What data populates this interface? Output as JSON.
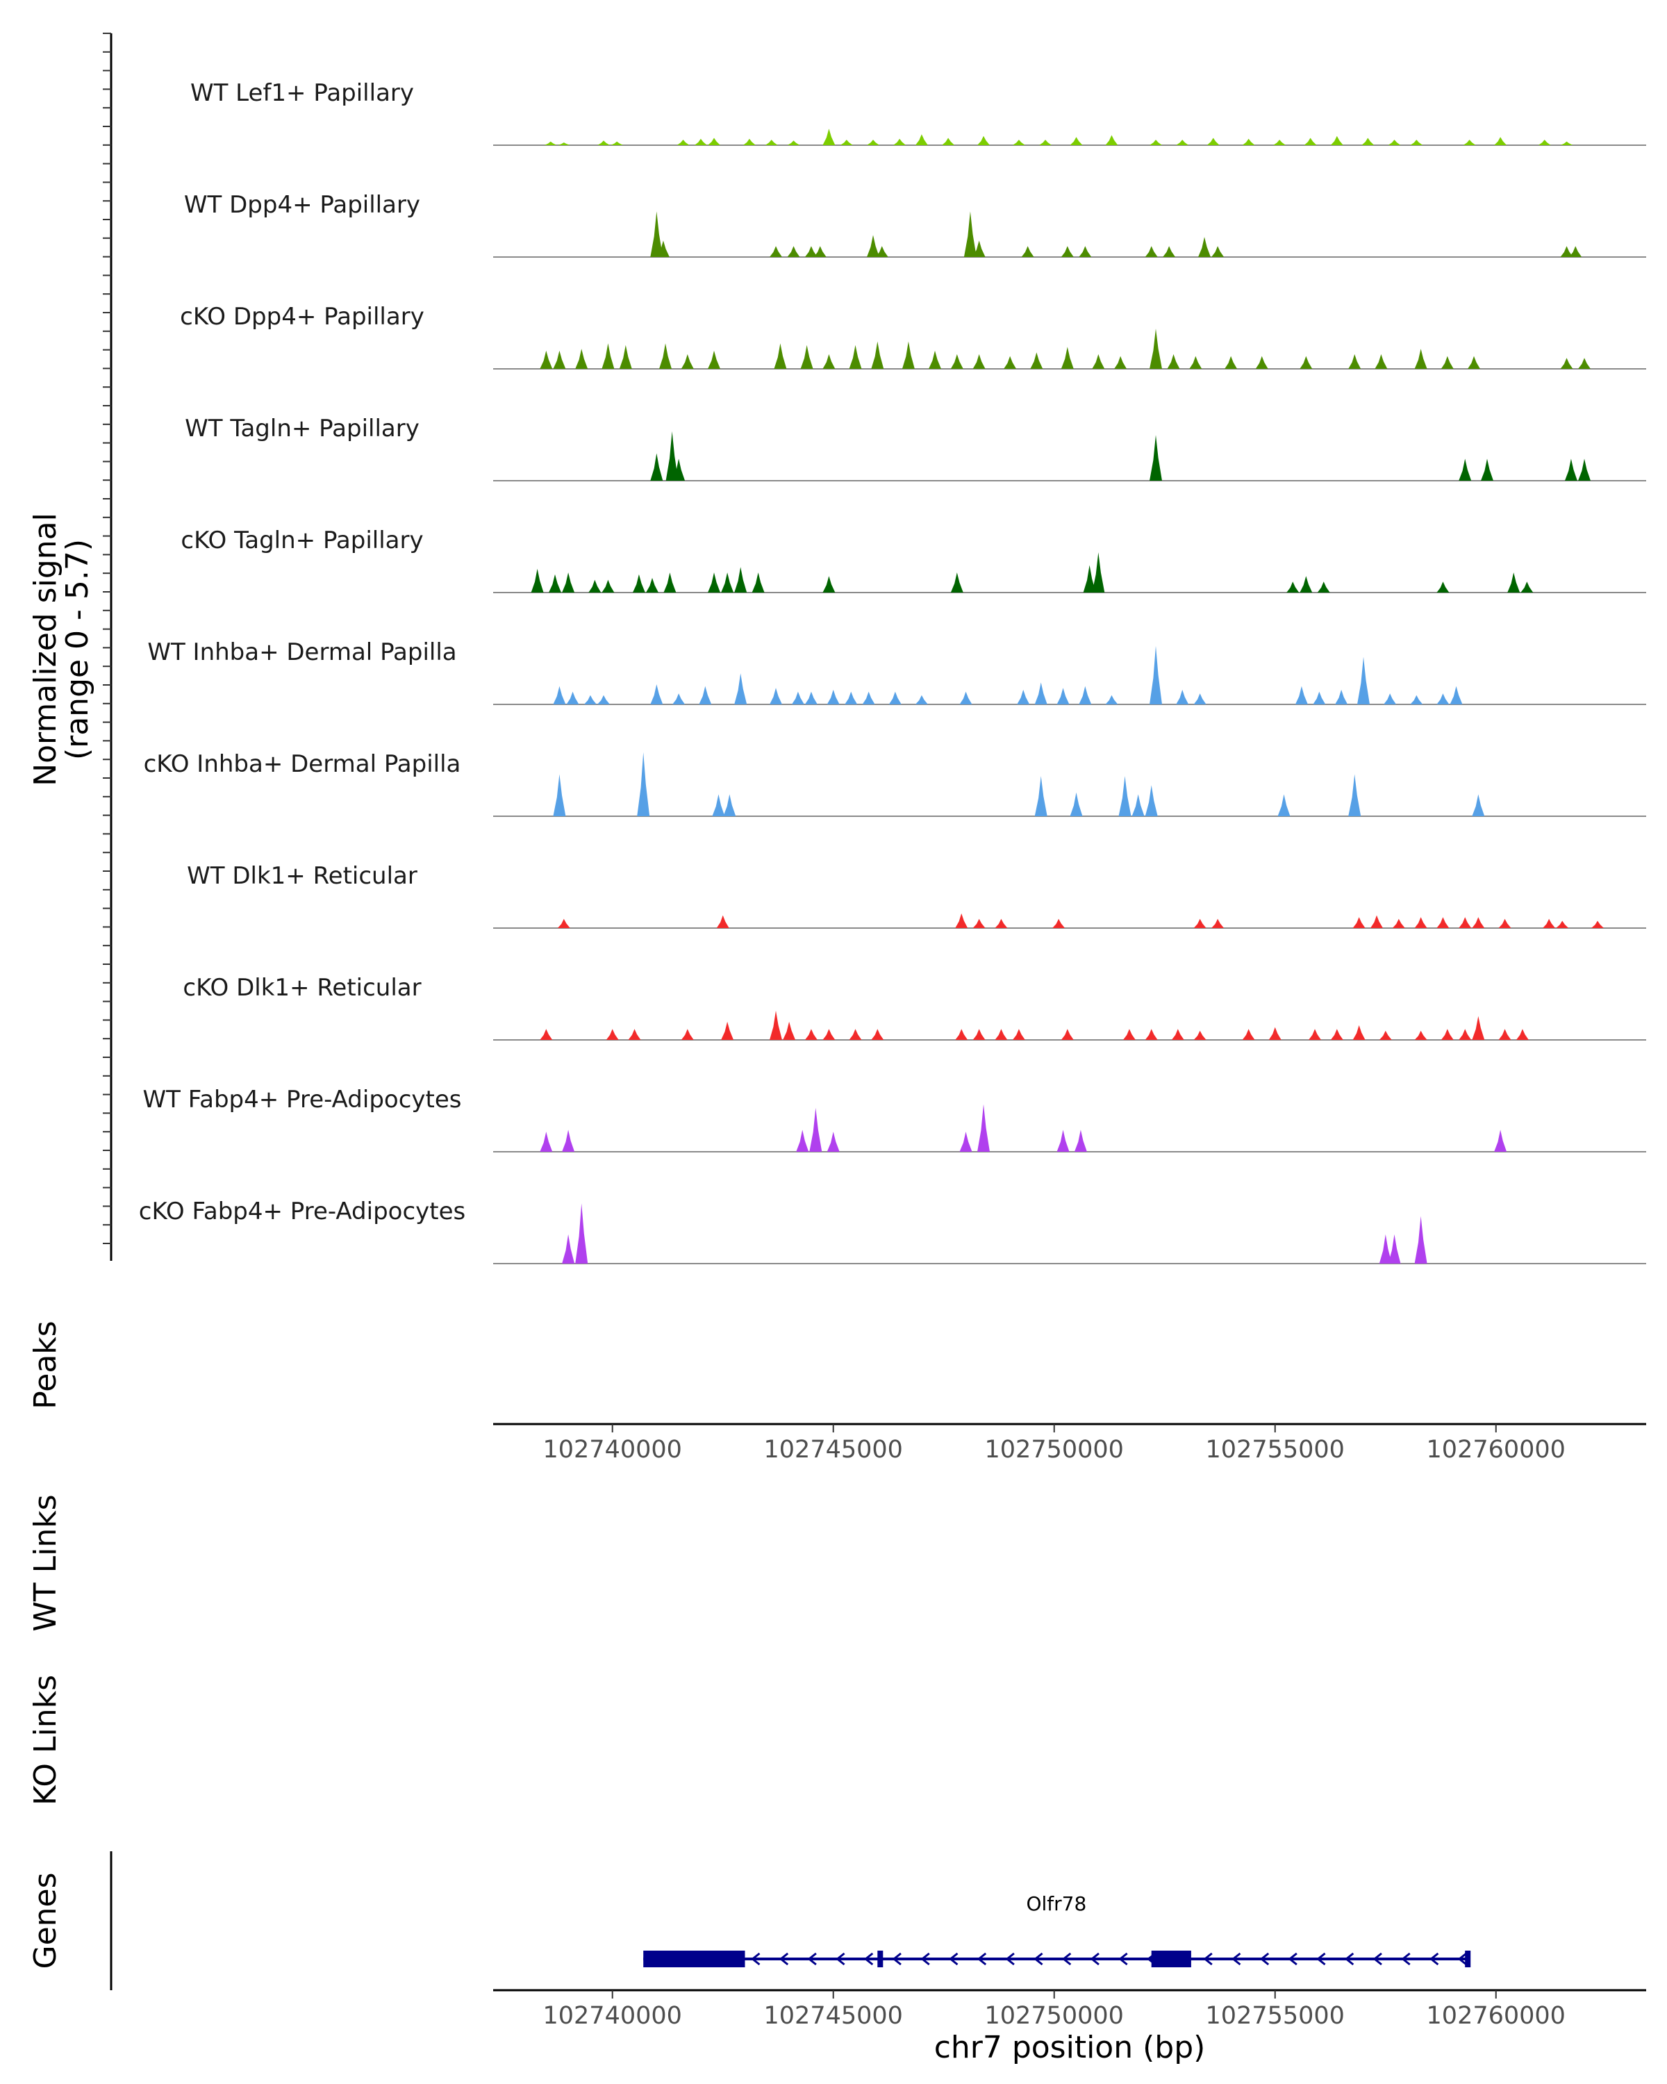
{
  "chart_data": {
    "type": "coverage",
    "signal_axis_label": [
      "Normalized signal",
      "(range 0 - 5.7)"
    ],
    "signal_range": [
      0,
      5.7
    ],
    "x_range_bp": [
      102737300,
      102763400
    ],
    "x_ticks": [
      102740000,
      102745000,
      102750000,
      102755000,
      102760000
    ],
    "x_tick_labels": [
      "102740000",
      "102745000",
      "102750000",
      "102755000",
      "102760000"
    ],
    "xlabel": "chr7 position (bp)",
    "tracks": [
      {
        "name": "WT Lef1+ Papillary",
        "color": "#7ccd00",
        "peaks": [
          [
            102738600,
            0.2
          ],
          [
            102738900,
            0.15
          ],
          [
            102739800,
            0.25
          ],
          [
            102740100,
            0.2
          ],
          [
            102741600,
            0.3
          ],
          [
            102742000,
            0.35
          ],
          [
            102742300,
            0.4
          ],
          [
            102743100,
            0.35
          ],
          [
            102743600,
            0.3
          ],
          [
            102744100,
            0.25
          ],
          [
            102744900,
            0.9
          ],
          [
            102745300,
            0.3
          ],
          [
            102745900,
            0.3
          ],
          [
            102746500,
            0.35
          ],
          [
            102747000,
            0.6
          ],
          [
            102747600,
            0.4
          ],
          [
            102748400,
            0.5
          ],
          [
            102749200,
            0.3
          ],
          [
            102749800,
            0.3
          ],
          [
            102750500,
            0.45
          ],
          [
            102751300,
            0.55
          ],
          [
            102752300,
            0.3
          ],
          [
            102752900,
            0.3
          ],
          [
            102753600,
            0.4
          ],
          [
            102754400,
            0.35
          ],
          [
            102755100,
            0.3
          ],
          [
            102755800,
            0.4
          ],
          [
            102756400,
            0.5
          ],
          [
            102757100,
            0.4
          ],
          [
            102757700,
            0.3
          ],
          [
            102758200,
            0.3
          ],
          [
            102759400,
            0.3
          ],
          [
            102760100,
            0.45
          ],
          [
            102761100,
            0.3
          ],
          [
            102761600,
            0.2
          ]
        ]
      },
      {
        "name": "WT Dpp4+ Papillary",
        "color": "#4c8c00",
        "peaks": [
          [
            102741000,
            2.5
          ],
          [
            102741150,
            0.9
          ],
          [
            102743700,
            0.6
          ],
          [
            102744100,
            0.6
          ],
          [
            102744500,
            0.6
          ],
          [
            102744700,
            0.6
          ],
          [
            102745900,
            1.2
          ],
          [
            102746100,
            0.6
          ],
          [
            102748100,
            2.5
          ],
          [
            102748300,
            0.9
          ],
          [
            102749400,
            0.6
          ],
          [
            102750300,
            0.6
          ],
          [
            102750700,
            0.6
          ],
          [
            102752200,
            0.6
          ],
          [
            102752600,
            0.6
          ],
          [
            102753400,
            1.1
          ],
          [
            102753700,
            0.6
          ],
          [
            102761600,
            0.6
          ],
          [
            102761800,
            0.6
          ]
        ]
      },
      {
        "name": "cKO Dpp4+ Papillary",
        "color": "#4c8c00",
        "peaks": [
          [
            102738500,
            1.0
          ],
          [
            102738800,
            1.0
          ],
          [
            102739300,
            1.1
          ],
          [
            102739900,
            1.4
          ],
          [
            102740300,
            1.3
          ],
          [
            102741200,
            1.4
          ],
          [
            102741700,
            0.8
          ],
          [
            102742300,
            1.0
          ],
          [
            102743800,
            1.4
          ],
          [
            102744400,
            1.3
          ],
          [
            102744900,
            0.8
          ],
          [
            102745500,
            1.3
          ],
          [
            102746000,
            1.5
          ],
          [
            102746700,
            1.5
          ],
          [
            102747300,
            1.0
          ],
          [
            102747800,
            0.8
          ],
          [
            102748300,
            0.8
          ],
          [
            102749000,
            0.7
          ],
          [
            102749600,
            0.9
          ],
          [
            102750300,
            1.2
          ],
          [
            102751000,
            0.8
          ],
          [
            102751500,
            0.7
          ],
          [
            102752300,
            2.2
          ],
          [
            102752700,
            0.8
          ],
          [
            102753200,
            0.7
          ],
          [
            102754000,
            0.7
          ],
          [
            102754700,
            0.7
          ],
          [
            102755700,
            0.7
          ],
          [
            102756800,
            0.8
          ],
          [
            102757400,
            0.8
          ],
          [
            102758300,
            1.1
          ],
          [
            102758900,
            0.7
          ],
          [
            102759500,
            0.7
          ],
          [
            102761600,
            0.6
          ],
          [
            102762000,
            0.6
          ]
        ]
      },
      {
        "name": "WT Tagln+ Papillary",
        "color": "#006400",
        "peaks": [
          [
            102741000,
            1.5
          ],
          [
            102741350,
            2.7
          ],
          [
            102741500,
            1.2
          ],
          [
            102752300,
            2.5
          ],
          [
            102759300,
            1.2
          ],
          [
            102759800,
            1.2
          ],
          [
            102761700,
            1.2
          ],
          [
            102762000,
            1.2
          ]
        ]
      },
      {
        "name": "cKO Tagln+ Papillary",
        "color": "#006400",
        "peaks": [
          [
            102738300,
            1.3
          ],
          [
            102738700,
            1.0
          ],
          [
            102739000,
            1.1
          ],
          [
            102739600,
            0.7
          ],
          [
            102739900,
            0.7
          ],
          [
            102740600,
            1.0
          ],
          [
            102740900,
            0.8
          ],
          [
            102741300,
            1.1
          ],
          [
            102742300,
            1.1
          ],
          [
            102742600,
            1.1
          ],
          [
            102742900,
            1.4
          ],
          [
            102743300,
            1.1
          ],
          [
            102744900,
            0.9
          ],
          [
            102747800,
            1.1
          ],
          [
            102750800,
            1.5
          ],
          [
            102751000,
            2.2
          ],
          [
            102755400,
            0.6
          ],
          [
            102755700,
            0.9
          ],
          [
            102756100,
            0.6
          ],
          [
            102758800,
            0.6
          ],
          [
            102760400,
            1.1
          ],
          [
            102760700,
            0.6
          ]
        ]
      },
      {
        "name": "WT Inhba+ Dermal Papilla",
        "color": "#56a0e6",
        "peaks": [
          [
            102738800,
            1.0
          ],
          [
            102739100,
            0.7
          ],
          [
            102739500,
            0.5
          ],
          [
            102739800,
            0.5
          ],
          [
            102741000,
            1.1
          ],
          [
            102741500,
            0.6
          ],
          [
            102742100,
            1.0
          ],
          [
            102742900,
            1.7
          ],
          [
            102743700,
            0.9
          ],
          [
            102744200,
            0.7
          ],
          [
            102744500,
            0.7
          ],
          [
            102745000,
            0.8
          ],
          [
            102745400,
            0.7
          ],
          [
            102745800,
            0.7
          ],
          [
            102746400,
            0.7
          ],
          [
            102747000,
            0.5
          ],
          [
            102748000,
            0.7
          ],
          [
            102749300,
            0.8
          ],
          [
            102749700,
            1.2
          ],
          [
            102750200,
            0.9
          ],
          [
            102750700,
            1.0
          ],
          [
            102751300,
            0.5
          ],
          [
            102752300,
            3.2
          ],
          [
            102752900,
            0.8
          ],
          [
            102753300,
            0.6
          ],
          [
            102755600,
            1.0
          ],
          [
            102756000,
            0.7
          ],
          [
            102756500,
            0.8
          ],
          [
            102757000,
            2.6
          ],
          [
            102757600,
            0.6
          ],
          [
            102758200,
            0.5
          ],
          [
            102758800,
            0.6
          ],
          [
            102759100,
            1.0
          ]
        ]
      },
      {
        "name": "cKO Inhba+ Dermal Papilla",
        "color": "#56a0e6",
        "peaks": [
          [
            102738800,
            2.3
          ],
          [
            102740700,
            3.5
          ],
          [
            102742400,
            1.2
          ],
          [
            102742650,
            1.2
          ],
          [
            102749700,
            2.2
          ],
          [
            102750500,
            1.3
          ],
          [
            102751600,
            2.2
          ],
          [
            102751900,
            1.2
          ],
          [
            102752200,
            1.7
          ],
          [
            102755200,
            1.2
          ],
          [
            102756800,
            2.3
          ],
          [
            102759600,
            1.2
          ]
        ]
      },
      {
        "name": "WT Dlk1+ Reticular",
        "color": "#f22a2a",
        "peaks": [
          [
            102738900,
            0.5
          ],
          [
            102742500,
            0.7
          ],
          [
            102747900,
            0.8
          ],
          [
            102748300,
            0.5
          ],
          [
            102748800,
            0.5
          ],
          [
            102750100,
            0.5
          ],
          [
            102753300,
            0.5
          ],
          [
            102753700,
            0.5
          ],
          [
            102756900,
            0.6
          ],
          [
            102757300,
            0.7
          ],
          [
            102757800,
            0.5
          ],
          [
            102758300,
            0.6
          ],
          [
            102758800,
            0.6
          ],
          [
            102759300,
            0.6
          ],
          [
            102759600,
            0.6
          ],
          [
            102760200,
            0.5
          ],
          [
            102761200,
            0.5
          ],
          [
            102761500,
            0.4
          ],
          [
            102762300,
            0.4
          ]
        ]
      },
      {
        "name": "cKO Dlk1+ Reticular",
        "color": "#f22a2a",
        "peaks": [
          [
            102738500,
            0.6
          ],
          [
            102740000,
            0.6
          ],
          [
            102740500,
            0.6
          ],
          [
            102741700,
            0.6
          ],
          [
            102742600,
            1.0
          ],
          [
            102743700,
            1.6
          ],
          [
            102744000,
            1.0
          ],
          [
            102744500,
            0.6
          ],
          [
            102744900,
            0.6
          ],
          [
            102745500,
            0.6
          ],
          [
            102746000,
            0.6
          ],
          [
            102747900,
            0.6
          ],
          [
            102748300,
            0.6
          ],
          [
            102748800,
            0.6
          ],
          [
            102749200,
            0.6
          ],
          [
            102750300,
            0.6
          ],
          [
            102751700,
            0.6
          ],
          [
            102752200,
            0.6
          ],
          [
            102752800,
            0.6
          ],
          [
            102753300,
            0.5
          ],
          [
            102754400,
            0.6
          ],
          [
            102755000,
            0.7
          ],
          [
            102755900,
            0.6
          ],
          [
            102756400,
            0.6
          ],
          [
            102756900,
            0.8
          ],
          [
            102757500,
            0.5
          ],
          [
            102758300,
            0.5
          ],
          [
            102758900,
            0.6
          ],
          [
            102759300,
            0.6
          ],
          [
            102759600,
            1.3
          ],
          [
            102760200,
            0.6
          ],
          [
            102760600,
            0.6
          ]
        ]
      },
      {
        "name": "WT Fabp4+ Pre-Adipocytes",
        "color": "#b040ee",
        "peaks": [
          [
            102738500,
            1.1
          ],
          [
            102739000,
            1.2
          ],
          [
            102744300,
            1.2
          ],
          [
            102744600,
            2.4
          ],
          [
            102745000,
            1.1
          ],
          [
            102748000,
            1.1
          ],
          [
            102748400,
            2.6
          ],
          [
            102750200,
            1.2
          ],
          [
            102750600,
            1.2
          ],
          [
            102760100,
            1.2
          ]
        ]
      },
      {
        "name": "cKO Fabp4+ Pre-Adipocytes",
        "color": "#b040ee",
        "peaks": [
          [
            102739000,
            1.6
          ],
          [
            102739300,
            3.3
          ],
          [
            102757500,
            1.6
          ],
          [
            102757700,
            1.6
          ],
          [
            102758300,
            2.6
          ]
        ]
      }
    ],
    "peaks_track_label": "Peaks",
    "links_tracks": [
      "WT Links",
      "KO Links"
    ],
    "genes_track_label": "Genes",
    "gene": {
      "name": "Olfr78",
      "color": "#00008b",
      "start": 102740700,
      "end": 102759400,
      "strand": "-",
      "exons": [
        [
          102740700,
          102743000
        ],
        [
          102746000,
          102746100
        ],
        [
          102752200,
          102753100
        ],
        [
          102759300,
          102759400
        ]
      ]
    }
  }
}
